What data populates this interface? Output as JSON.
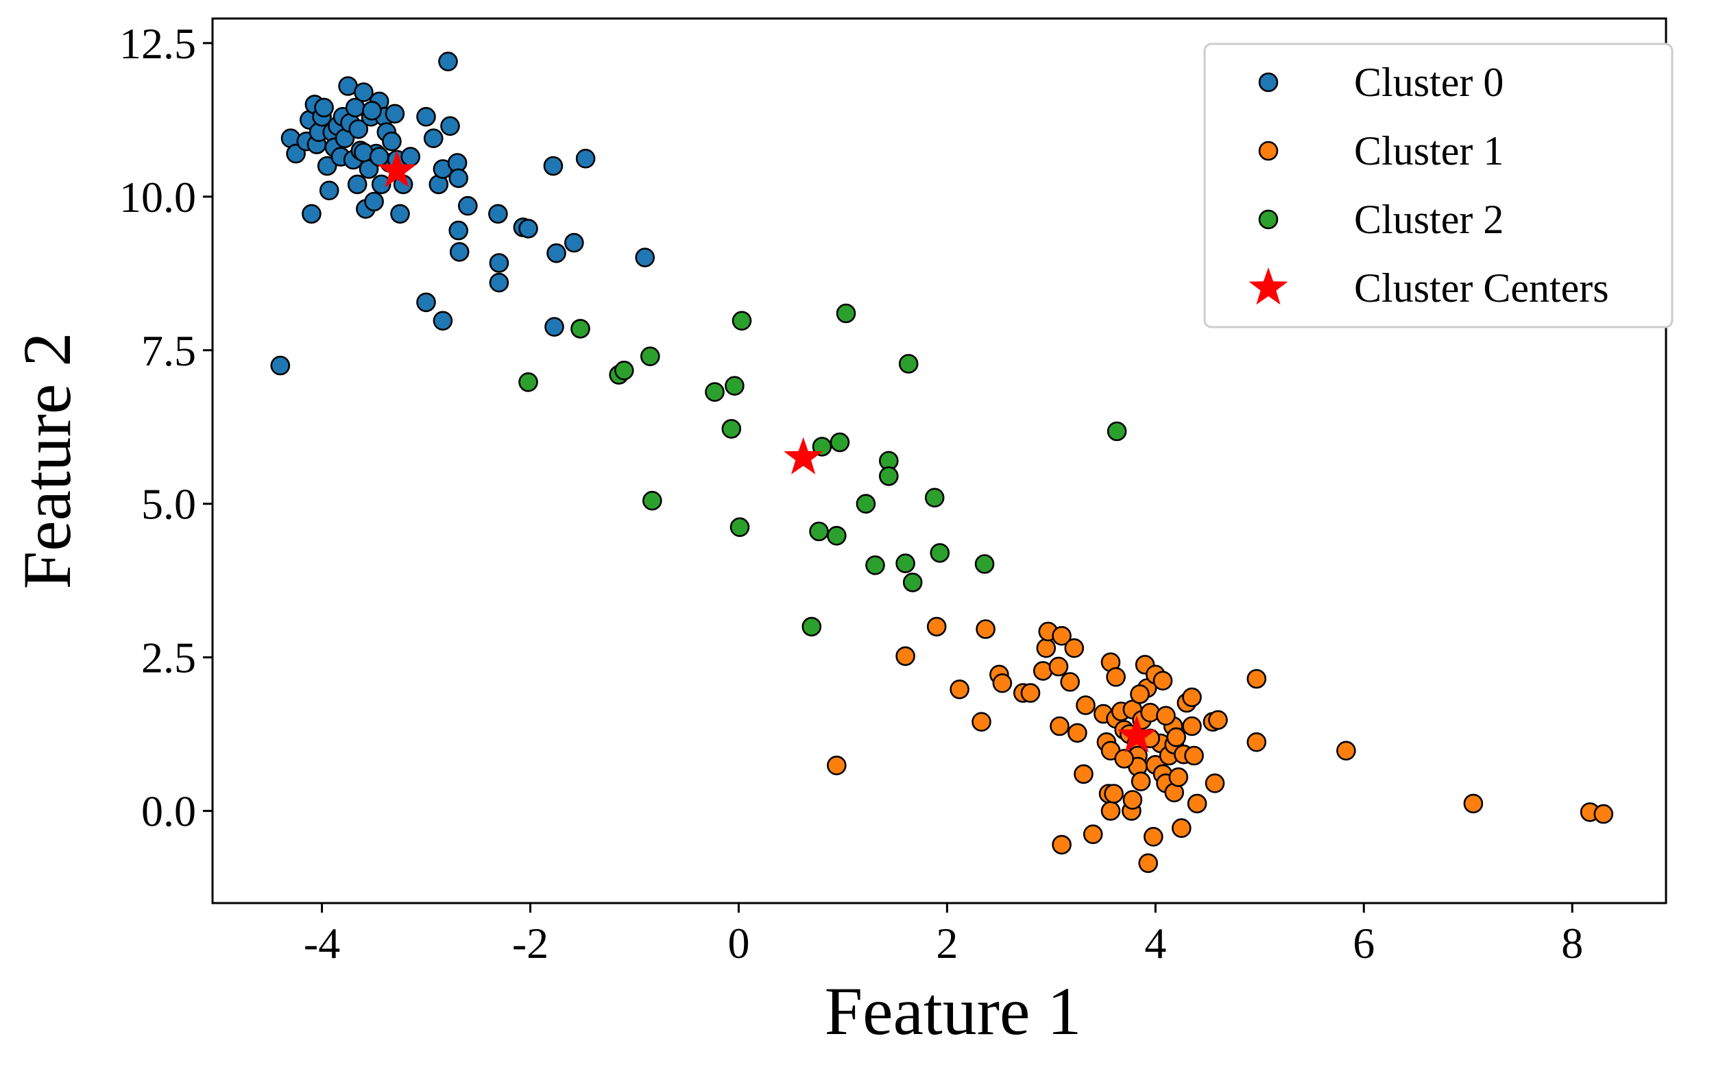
{
  "chart_data": {
    "type": "scatter",
    "title": "",
    "xlabel": "Feature 1",
    "ylabel": "Feature 2",
    "xlim": [
      -5.05,
      8.9
    ],
    "ylim": [
      -1.5,
      12.9
    ],
    "xticks": [
      -4,
      -2,
      0,
      2,
      4,
      6,
      8
    ],
    "xtick_labels": [
      "-4",
      "-2",
      "0",
      "2",
      "4",
      "6",
      "8"
    ],
    "yticks": [
      0,
      2.5,
      5,
      7.5,
      10,
      12.5
    ],
    "ytick_labels": [
      "0.0",
      "2.5",
      "5.0",
      "7.5",
      "10.0",
      "12.5"
    ],
    "grid": false,
    "legend_position": "top-right",
    "colors": {
      "cluster_0": "#1f77b4",
      "cluster_1": "#ff7f0e",
      "cluster_2": "#2ca02c",
      "centers": "#ff0000",
      "edge": "#000000"
    },
    "series": [
      {
        "name": "Cluster 0",
        "color": "#1f77b4",
        "marker": "circle",
        "points": [
          [
            -4.4,
            7.25
          ],
          [
            -4.3,
            10.95
          ],
          [
            -4.25,
            10.7
          ],
          [
            -4.15,
            10.9
          ],
          [
            -4.12,
            11.25
          ],
          [
            -4.1,
            9.72
          ],
          [
            -4.07,
            11.5
          ],
          [
            -4.05,
            10.85
          ],
          [
            -4.03,
            11.05
          ],
          [
            -4.0,
            11.3
          ],
          [
            -3.98,
            11.45
          ],
          [
            -3.95,
            10.5
          ],
          [
            -3.93,
            10.1
          ],
          [
            -3.9,
            11.05
          ],
          [
            -3.88,
            10.8
          ],
          [
            -3.85,
            11.15
          ],
          [
            -3.82,
            10.65
          ],
          [
            -3.8,
            11.3
          ],
          [
            -3.78,
            10.95
          ],
          [
            -3.75,
            11.8
          ],
          [
            -3.73,
            11.2
          ],
          [
            -3.7,
            10.6
          ],
          [
            -3.68,
            11.45
          ],
          [
            -3.65,
            11.1
          ],
          [
            -3.63,
            10.75
          ],
          [
            -3.6,
            11.7
          ],
          [
            -3.58,
            9.8
          ],
          [
            -3.55,
            10.45
          ],
          [
            -3.53,
            11.3
          ],
          [
            -3.5,
            9.92
          ],
          [
            -3.48,
            10.7
          ],
          [
            -3.45,
            11.55
          ],
          [
            -3.43,
            10.2
          ],
          [
            -3.4,
            11.3
          ],
          [
            -3.38,
            11.05
          ],
          [
            -3.35,
            10.55
          ],
          [
            -3.33,
            10.9
          ],
          [
            -3.3,
            11.35
          ],
          [
            -3.28,
            10.6
          ],
          [
            -3.25,
            9.72
          ],
          [
            -3.22,
            10.2
          ],
          [
            -3.15,
            10.65
          ],
          [
            -3.0,
            11.3
          ],
          [
            -3.0,
            8.28
          ],
          [
            -2.93,
            10.95
          ],
          [
            -2.88,
            10.2
          ],
          [
            -2.84,
            10.45
          ],
          [
            -2.84,
            7.98
          ],
          [
            -2.79,
            12.2
          ],
          [
            -2.77,
            11.15
          ],
          [
            -2.7,
            10.55
          ],
          [
            -2.69,
            10.3
          ],
          [
            -2.69,
            9.45
          ],
          [
            -2.68,
            9.1
          ],
          [
            -2.6,
            9.85
          ],
          [
            -2.31,
            9.72
          ],
          [
            -2.3,
            8.92
          ],
          [
            -2.3,
            8.6
          ],
          [
            -2.07,
            9.5
          ],
          [
            -2.02,
            9.48
          ],
          [
            -1.78,
            10.5
          ],
          [
            -1.77,
            7.88
          ],
          [
            -1.75,
            9.08
          ],
          [
            -1.58,
            9.25
          ],
          [
            -1.47,
            10.62
          ],
          [
            -0.9,
            9.01
          ],
          [
            -3.6,
            10.72
          ],
          [
            -3.52,
            11.4
          ],
          [
            -3.45,
            10.65
          ],
          [
            -3.66,
            10.2
          ]
        ]
      },
      {
        "name": "Cluster 1",
        "color": "#ff7f0e",
        "marker": "circle",
        "points": [
          [
            0.94,
            0.74
          ],
          [
            1.6,
            2.52
          ],
          [
            1.9,
            3.0
          ],
          [
            2.12,
            1.98
          ],
          [
            2.33,
            1.45
          ],
          [
            2.37,
            2.96
          ],
          [
            2.5,
            2.22
          ],
          [
            2.53,
            2.08
          ],
          [
            2.73,
            1.92
          ],
          [
            2.8,
            1.92
          ],
          [
            2.92,
            2.28
          ],
          [
            2.95,
            2.65
          ],
          [
            2.97,
            2.92
          ],
          [
            3.07,
            2.35
          ],
          [
            3.08,
            1.38
          ],
          [
            3.1,
            2.85
          ],
          [
            3.1,
            -0.55
          ],
          [
            3.18,
            2.1
          ],
          [
            3.22,
            2.65
          ],
          [
            3.25,
            1.27
          ],
          [
            3.31,
            0.6
          ],
          [
            3.33,
            1.72
          ],
          [
            3.4,
            -0.38
          ],
          [
            3.5,
            1.58
          ],
          [
            3.53,
            1.12
          ],
          [
            3.55,
            0.28
          ],
          [
            3.57,
            2.42
          ],
          [
            3.57,
            0.98
          ],
          [
            3.57,
            0.0
          ],
          [
            3.6,
            0.28
          ],
          [
            3.62,
            1.5
          ],
          [
            3.62,
            2.18
          ],
          [
            3.67,
            1.62
          ],
          [
            3.7,
            1.32
          ],
          [
            3.75,
            1.25
          ],
          [
            3.77,
            0.0
          ],
          [
            3.78,
            0.18
          ],
          [
            3.78,
            1.65
          ],
          [
            3.82,
            1.1
          ],
          [
            3.83,
            0.9
          ],
          [
            3.83,
            0.72
          ],
          [
            3.86,
            0.48
          ],
          [
            3.87,
            1.48
          ],
          [
            3.9,
            2.38
          ],
          [
            3.92,
            2.0
          ],
          [
            3.93,
            -0.85
          ],
          [
            3.95,
            1.6
          ],
          [
            3.98,
            -0.42
          ],
          [
            4.0,
            2.22
          ],
          [
            4.0,
            0.75
          ],
          [
            4.05,
            1.1
          ],
          [
            4.07,
            0.6
          ],
          [
            4.07,
            2.12
          ],
          [
            4.1,
            0.45
          ],
          [
            4.13,
            0.9
          ],
          [
            4.17,
            1.38
          ],
          [
            4.18,
            1.08
          ],
          [
            4.18,
            0.3
          ],
          [
            4.22,
            0.55
          ],
          [
            4.25,
            -0.28
          ],
          [
            4.27,
            0.92
          ],
          [
            4.3,
            1.76
          ],
          [
            4.35,
            1.85
          ],
          [
            4.35,
            1.38
          ],
          [
            4.37,
            0.9
          ],
          [
            4.4,
            0.12
          ],
          [
            4.55,
            1.45
          ],
          [
            4.57,
            0.45
          ],
          [
            4.6,
            1.48
          ],
          [
            4.97,
            1.12
          ],
          [
            4.97,
            2.15
          ],
          [
            5.83,
            0.98
          ],
          [
            7.05,
            0.12
          ],
          [
            8.17,
            -0.02
          ],
          [
            8.3,
            -0.05
          ],
          [
            3.7,
            0.85
          ],
          [
            3.95,
            1.18
          ],
          [
            4.1,
            1.55
          ],
          [
            3.85,
            1.9
          ],
          [
            4.2,
            1.2
          ]
        ]
      },
      {
        "name": "Cluster 2",
        "color": "#2ca02c",
        "marker": "circle",
        "points": [
          [
            -2.02,
            6.98
          ],
          [
            -1.52,
            7.85
          ],
          [
            -1.15,
            7.1
          ],
          [
            -1.1,
            7.17
          ],
          [
            -0.85,
            7.4
          ],
          [
            -0.83,
            5.05
          ],
          [
            -0.23,
            6.82
          ],
          [
            -0.07,
            6.22
          ],
          [
            -0.04,
            6.92
          ],
          [
            0.01,
            4.62
          ],
          [
            0.03,
            7.98
          ],
          [
            0.7,
            3.0
          ],
          [
            0.77,
            4.55
          ],
          [
            0.8,
            5.93
          ],
          [
            0.94,
            4.48
          ],
          [
            0.97,
            6.0
          ],
          [
            1.03,
            8.1
          ],
          [
            1.22,
            5.0
          ],
          [
            1.31,
            4.0
          ],
          [
            1.44,
            5.7
          ],
          [
            1.44,
            5.45
          ],
          [
            1.6,
            4.03
          ],
          [
            1.63,
            7.28
          ],
          [
            1.67,
            3.72
          ],
          [
            1.88,
            5.1
          ],
          [
            1.93,
            4.2
          ],
          [
            2.36,
            4.02
          ],
          [
            3.63,
            6.18
          ]
        ]
      },
      {
        "name": "Cluster Centers",
        "color": "#ff0000",
        "marker": "star",
        "points": [
          [
            -3.28,
            10.42
          ],
          [
            0.62,
            5.75
          ],
          [
            3.82,
            1.22
          ]
        ]
      }
    ]
  }
}
